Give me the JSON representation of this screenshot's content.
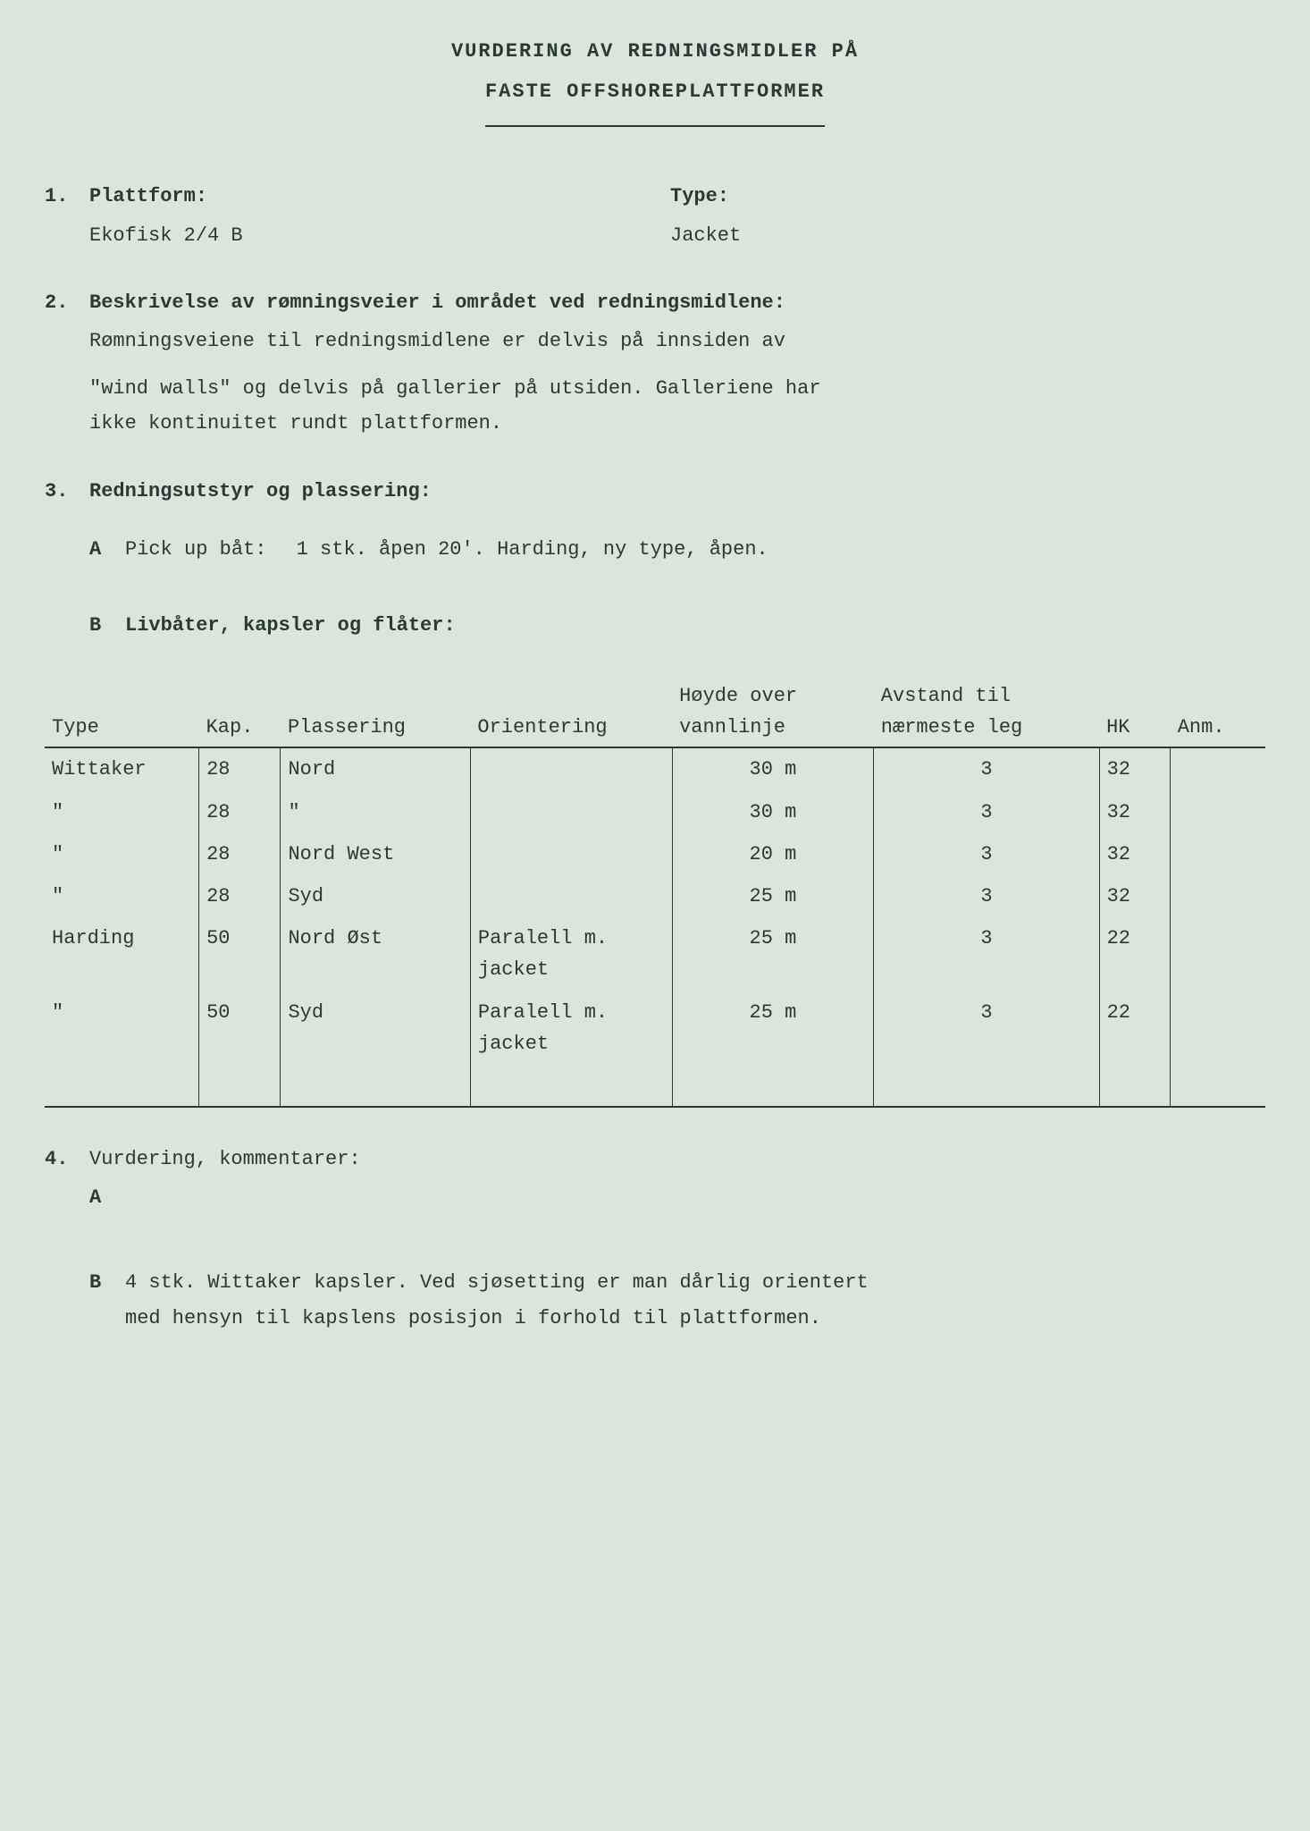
{
  "header": {
    "title_line1": "VURDERING AV REDNINGSMIDLER PÅ",
    "title_line2": "FASTE OFFSHOREPLATTFORMER"
  },
  "section1": {
    "number": "1.",
    "platform_label": "Plattform:",
    "type_label": "Type:",
    "platform_value": "Ekofisk 2/4 B",
    "type_value": "Jacket"
  },
  "section2": {
    "number": "2.",
    "heading": "Beskrivelse av rømningsveier i området ved redningsmidlene:",
    "body_line1": "Rømningsveiene til redningsmidlene er delvis på innsiden av",
    "body_line2": "\"wind walls\" og delvis på gallerier på utsiden.  Galleriene har",
    "body_line3": "ikke kontinuitet rundt plattformen."
  },
  "section3": {
    "number": "3.",
    "heading": "Redningsutstyr og plassering:",
    "sub_a": {
      "letter": "A",
      "label": "Pick up båt:",
      "value": "1 stk. åpen 20'. Harding, ny type, åpen."
    },
    "sub_b": {
      "letter": "B",
      "label": "Livbåter, kapsler og flåter:"
    }
  },
  "table": {
    "headers": {
      "type": "Type",
      "kap": "Kap.",
      "plassering": "Plassering",
      "orientering": "Orientering",
      "hoyde": "Høyde over vannlinje",
      "avstand": "Avstand til nærmeste leg",
      "hk": "HK",
      "anm": "Anm."
    },
    "rows": [
      {
        "type": "Wittaker",
        "kap": "28",
        "plassering": "Nord",
        "orientering": "",
        "hoyde": "30 m",
        "avstand": "3",
        "hk": "32",
        "anm": ""
      },
      {
        "type": "\"",
        "kap": "28",
        "plassering": "\"",
        "orientering": "",
        "hoyde": "30 m",
        "avstand": "3",
        "hk": "32",
        "anm": ""
      },
      {
        "type": "\"",
        "kap": "28",
        "plassering": "Nord West",
        "orientering": "",
        "hoyde": "20 m",
        "avstand": "3",
        "hk": "32",
        "anm": ""
      },
      {
        "type": "\"",
        "kap": "28",
        "plassering": "Syd",
        "orientering": "",
        "hoyde": "25 m",
        "avstand": "3",
        "hk": "32",
        "anm": ""
      },
      {
        "type": "Harding",
        "kap": "50",
        "plassering": "Nord Øst",
        "orientering": "Paralell m. jacket",
        "hoyde": "25 m",
        "avstand": "3",
        "hk": "22",
        "anm": ""
      },
      {
        "type": "\"",
        "kap": "50",
        "plassering": "Syd",
        "orientering": "Paralell m. jacket",
        "hoyde": "25 m",
        "avstand": "3",
        "hk": "22",
        "anm": ""
      }
    ]
  },
  "section4": {
    "number": "4.",
    "heading": "Vurdering, kommentarer:",
    "sub_a": {
      "letter": "A",
      "text": ""
    },
    "sub_b": {
      "letter": "B",
      "text_line1": "4 stk. Wittaker kapsler.  Ved sjøsetting er man dårlig orientert",
      "text_line2": "med hensyn til kapslens posisjon i forhold til plattformen."
    }
  }
}
